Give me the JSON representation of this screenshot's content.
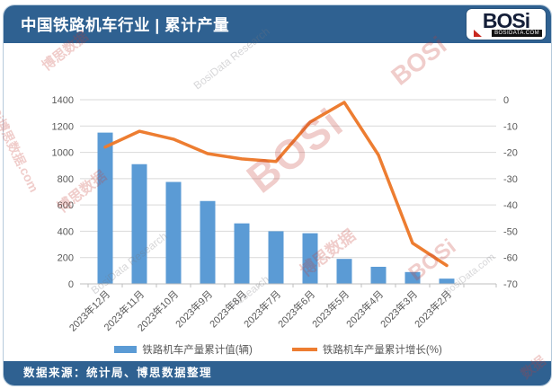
{
  "header": {
    "title": "中国铁路机车行业 | 累计产量"
  },
  "logo": {
    "name": "BOSi",
    "domain": "BOSIDATA.COM"
  },
  "footer": {
    "source": "数据来源：统计局、博思数据整理"
  },
  "colors": {
    "header_bg": "#2F6191",
    "footer_bg": "#2F6191",
    "bar": "#5B9BD5",
    "line": "#ED7D31",
    "gridline": "#D9D9D9",
    "axis_line": "#BFBFBF",
    "axis_text": "#595959",
    "logo_red": "#C8271F"
  },
  "legend": [
    {
      "label": "铁路机车产量累计值(辆)",
      "type": "bar",
      "color": "#5B9BD5"
    },
    {
      "label": "铁路机车产量累计增长(%)",
      "type": "line",
      "color": "#ED7D31"
    }
  ],
  "watermarks": [
    "博思数据",
    "BosiData Research",
    "BOSi博思数据.com",
    "BOSi",
    "博思数据",
    "BosiData Research",
    "BosiData.com",
    "BOSi",
    "BOSi",
    "数据",
    "博思数据",
    "Research"
  ],
  "chart_data": {
    "type": "bar",
    "title": "中国铁路机车行业 | 累计产量",
    "categories": [
      "2023年12月",
      "2023年11月",
      "2023年10月",
      "2023年9月",
      "2023年8月",
      "2023年7月",
      "2023年6月",
      "2023年5月",
      "2023年4月",
      "2023年3月",
      "2023年2月"
    ],
    "series": [
      {
        "name": "铁路机车产量累计值(辆)",
        "type": "bar",
        "axis": "left",
        "color": "#5B9BD5",
        "values": [
          1150,
          910,
          775,
          630,
          460,
          400,
          385,
          190,
          130,
          90,
          40
        ]
      },
      {
        "name": "铁路机车产量累计增长(%)",
        "type": "line",
        "axis": "right",
        "color": "#ED7D31",
        "values": [
          -18,
          -12,
          -15,
          -20.5,
          -22.5,
          -23.5,
          -8.5,
          -1,
          -21,
          -54.5,
          -63
        ]
      }
    ],
    "left_axis": {
      "label": "",
      "min": 0,
      "max": 1400,
      "step": 200
    },
    "right_axis": {
      "label": "",
      "min": -70,
      "max": 0,
      "step": 10
    },
    "grid": true,
    "legend_position": "bottom",
    "xlabel": "",
    "ylabel": ""
  }
}
